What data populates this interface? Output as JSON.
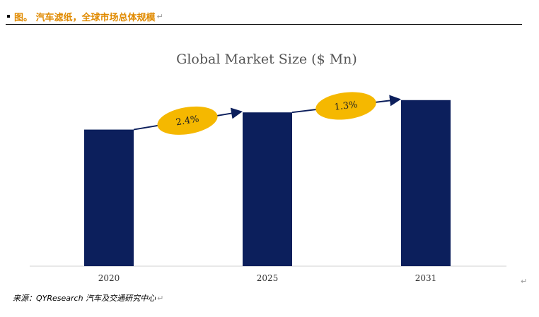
{
  "heading": {
    "text": "图。 汽车滤纸，全球市场总体规模",
    "mark": "↵"
  },
  "source": {
    "text": "来源：QYResearch 汽车及交通研究中心",
    "mark": "↵"
  },
  "edge_mark": "↵",
  "colors": {
    "bar": "#0c1f5c",
    "ellipse": "#f5b800",
    "heading": "#e08a00",
    "arrow": "#0c1f5c"
  },
  "chart_data": {
    "type": "bar",
    "title": "Global Market Size ($ Mn)",
    "categories": [
      "2020",
      "2025",
      "2031"
    ],
    "values": [
      100,
      112.6,
      121.6
    ],
    "growth_annotations": [
      {
        "from": "2020",
        "to": "2025",
        "label": "2.4%"
      },
      {
        "from": "2025",
        "to": "2031",
        "label": "1.3%"
      }
    ],
    "xlabel": "",
    "ylabel": "",
    "ylim": [
      0,
      122
    ],
    "grid": false,
    "legend": "none"
  }
}
